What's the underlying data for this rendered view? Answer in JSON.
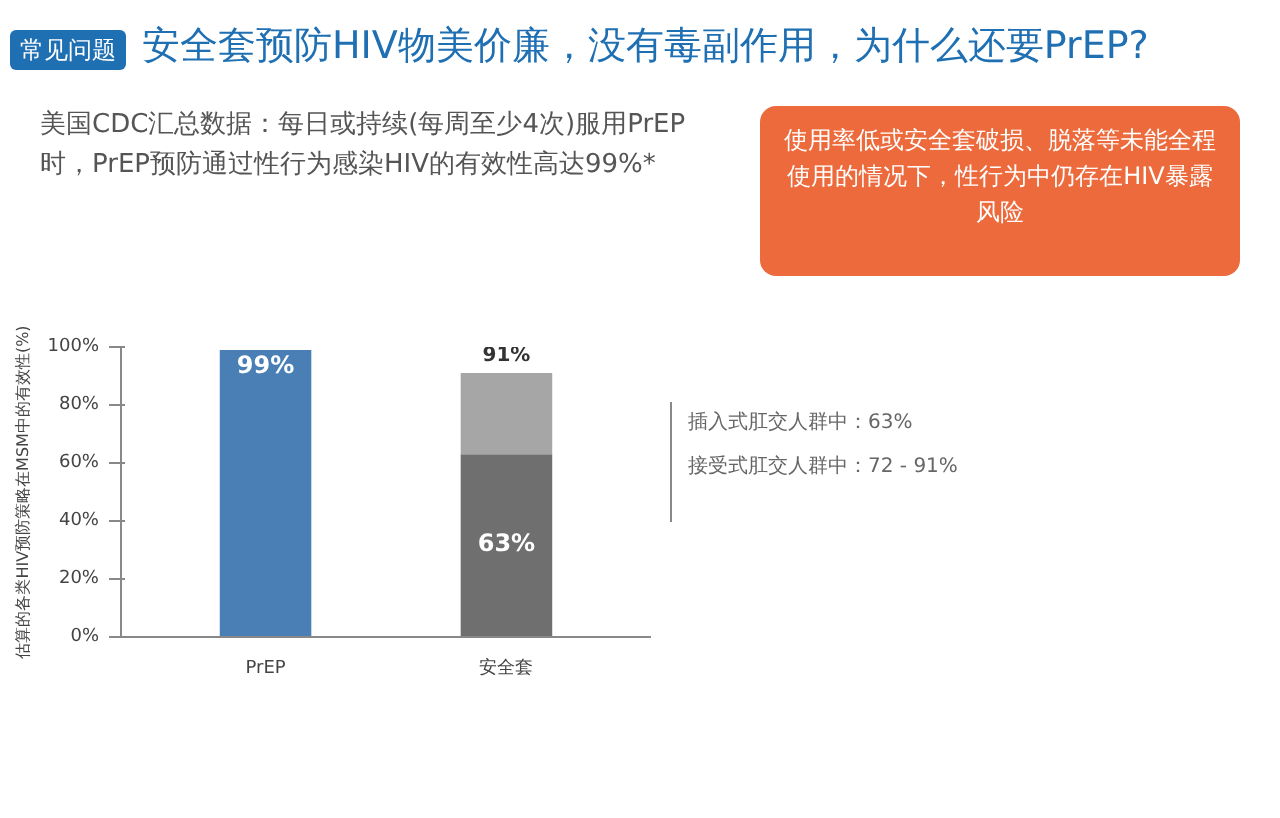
{
  "chart_data": {
    "type": "bar",
    "title": "安全套预防HIV物美价廉，没有毒副作用，为什么还要PrEP?",
    "ylabel": "估算的各类HIV预防策略在MSM中的有效性(%)",
    "categories": [
      "PrEP",
      "安全套"
    ],
    "stacked": true,
    "series": [
      {
        "colors": [
          "#4a7fb5",
          "#6f6f6f"
        ],
        "values": [
          99,
          63
        ],
        "value_labels": [
          "99%",
          "63%"
        ]
      },
      {
        "color": "#a6a6a6",
        "values": [
          null,
          28
        ]
      }
    ],
    "totals": [
      null,
      "91%"
    ],
    "ylim": [
      0,
      100
    ],
    "yticks": [
      {
        "value": 0,
        "label": "0%"
      },
      {
        "value": 20,
        "label": "20%"
      },
      {
        "value": 40,
        "label": "40%"
      },
      {
        "value": 60,
        "label": "60%"
      },
      {
        "value": 80,
        "label": "80%"
      },
      {
        "value": 100,
        "label": "100%"
      }
    ],
    "grid": false,
    "annotations": [
      "常见问题",
      "美国CDC汇总数据：每日或持续(每周至少4次)服用PrEP时，PrEP预防通过性行为感染HIV的有效性高达99%*",
      "使用率低或安全套破损、脱落等未能全程使用的情况下，性行为中仍存在HIV暴露风险",
      "插入式肛交人群中：63%",
      "接受式肛交人群中：72 - 91%"
    ]
  }
}
